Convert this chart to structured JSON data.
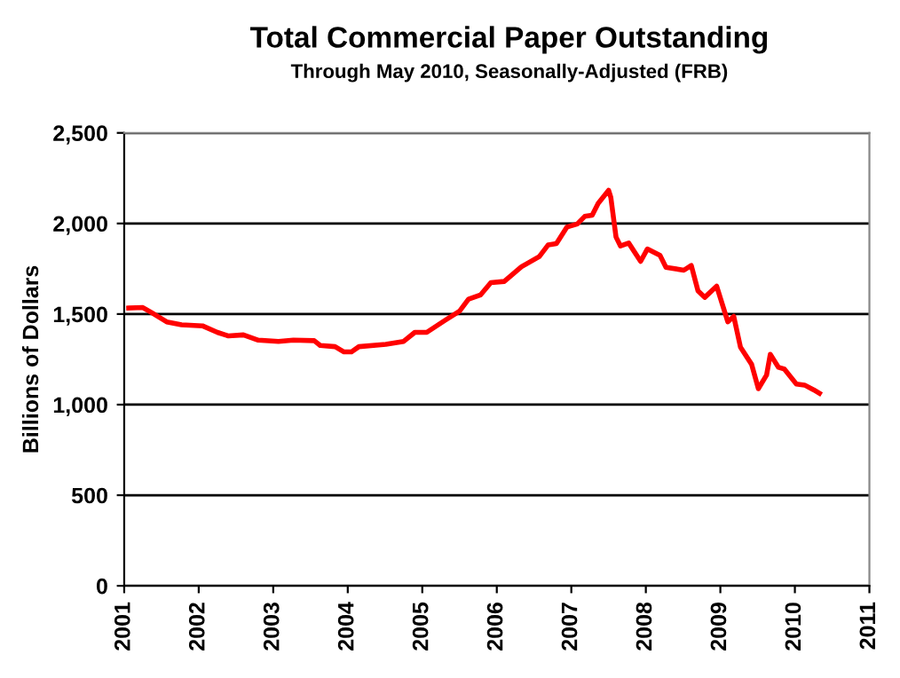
{
  "chart_data": {
    "type": "line",
    "title": "Total Commercial Paper Outstanding",
    "subtitle": "Through May 2010, Seasonally-Adjusted (FRB)",
    "ylabel": "Billions of Dollars",
    "x": [
      2001.06,
      2001.25,
      2001.37,
      2001.57,
      2001.77,
      2002.05,
      2002.25,
      2002.4,
      2002.6,
      2002.8,
      2003.07,
      2003.27,
      2003.55,
      2003.63,
      2003.83,
      2003.95,
      2004.05,
      2004.15,
      2004.51,
      2004.75,
      2004.9,
      2005.06,
      2005.3,
      2005.5,
      2005.62,
      2005.78,
      2005.92,
      2006.1,
      2006.33,
      2006.57,
      2006.69,
      2006.8,
      2006.94,
      2007.08,
      2007.18,
      2007.28,
      2007.36,
      2007.5,
      2007.53,
      2007.6,
      2007.66,
      2007.77,
      2007.93,
      2008.02,
      2008.19,
      2008.27,
      2008.51,
      2008.61,
      2008.7,
      2008.79,
      2008.95,
      2009.1,
      2009.18,
      2009.27,
      2009.42,
      2009.51,
      2009.62,
      2009.67,
      2009.78,
      2009.86,
      2010.02,
      2010.13,
      2010.25,
      2010.33
    ],
    "series": [
      {
        "color": "#ff0000",
        "values": [
          1533,
          1536,
          1507,
          1457,
          1441,
          1435,
          1399,
          1379,
          1385,
          1356,
          1349,
          1356,
          1353,
          1327,
          1320,
          1291,
          1291,
          1320,
          1333,
          1349,
          1399,
          1399,
          1464,
          1516,
          1582,
          1605,
          1673,
          1680,
          1761,
          1817,
          1882,
          1889,
          1980,
          1997,
          2039,
          2046,
          2111,
          2183,
          2144,
          1925,
          1876,
          1892,
          1791,
          1859,
          1824,
          1758,
          1742,
          1768,
          1628,
          1592,
          1654,
          1457,
          1487,
          1317,
          1222,
          1088,
          1163,
          1278,
          1206,
          1196,
          1114,
          1108,
          1082,
          1062
        ]
      }
    ],
    "xlim": [
      2001,
      2011
    ],
    "xticks": [
      2001,
      2002,
      2003,
      2004,
      2005,
      2006,
      2007,
      2008,
      2009,
      2010,
      2011
    ],
    "ylim": [
      0,
      2500
    ],
    "yticks": [
      {
        "value": 0,
        "label": "0"
      },
      {
        "value": 500,
        "label": "500"
      },
      {
        "value": 1000,
        "label": "1,000"
      },
      {
        "value": 1500,
        "label": "1,500"
      },
      {
        "value": 2000,
        "label": "2,000"
      },
      {
        "value": 2500,
        "label": "2,500"
      }
    ],
    "grid": "y",
    "legend": false,
    "marker": "none",
    "line_style": "solid"
  }
}
